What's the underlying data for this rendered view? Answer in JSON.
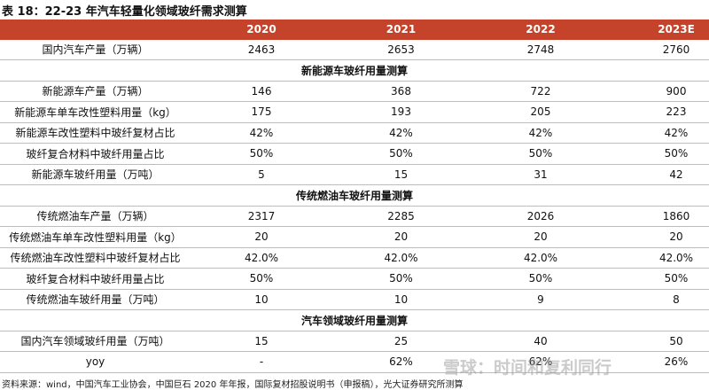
{
  "title": "表 18：22-23 年汽车轻量化领域玻纤需求测算",
  "table": {
    "header": [
      "",
      "2020",
      "2021",
      "2022",
      "2023E"
    ],
    "rows": [
      [
        "国内汽车产量（万辆）",
        2463,
        2653,
        2748,
        2760
      ],
      [
        "新能源车玻纤用量测算"
      ],
      [
        "新能源车产量（万辆）",
        146,
        368,
        722,
        900
      ],
      [
        "新能源车单车改性塑料用量（kg）",
        175,
        193,
        205,
        223
      ],
      [
        "新能源车改性塑料中玻纤复材占比",
        "42%",
        "42%",
        "42%",
        "42%"
      ],
      [
        "玻纤复合材料中玻纤用量占比",
        "50%",
        "50%",
        "50%",
        "50%"
      ],
      [
        "新能源车玻纤用量（万吨）",
        5,
        15,
        31,
        42
      ],
      [
        "传统燃油车玻纤用量测算"
      ],
      [
        "传统燃油车产量（万辆）",
        2317,
        2285,
        2026,
        1860
      ],
      [
        "传统燃油车单车改性塑料用量（kg）",
        20,
        20,
        20,
        20
      ],
      [
        "传统燃油车改性塑料中玻纤复材占比",
        "42.0%",
        "42.0%",
        "42.0%",
        "42.0%"
      ],
      [
        "玻纤复合材料中玻纤用量占比",
        "50%",
        "50%",
        "50%",
        "50%"
      ],
      [
        "传统燃油车玻纤用量（万吨）",
        10,
        10,
        9,
        8
      ],
      [
        "汽车领域玻纤用量测算"
      ],
      [
        "国内汽车领域玻纤用量（万吨）",
        15,
        25,
        40,
        50
      ],
      [
        "yoy",
        "-",
        "62%",
        "62%",
        "26%"
      ]
    ]
  },
  "source": "资料来源：wind，中国汽车工业协会，中国巨石 2020 年年报，国际复材招股说明书（申报稿），光大证券研究所测算",
  "watermark": "雪球：时间和复利同行"
}
